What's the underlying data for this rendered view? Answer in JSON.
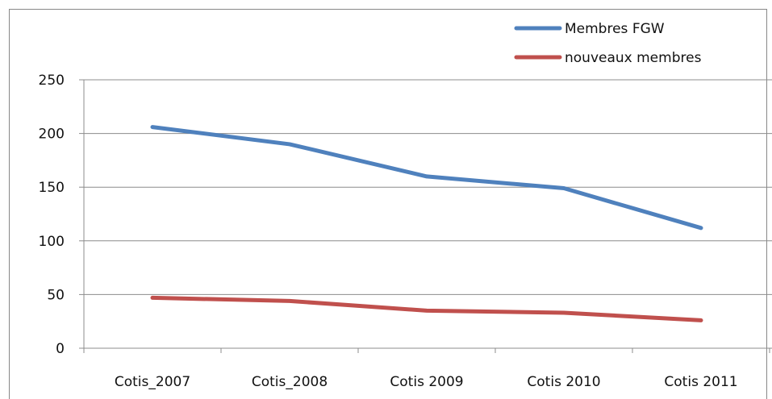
{
  "chart_data": {
    "type": "line",
    "title": "",
    "xlabel": "",
    "ylabel": "",
    "categories": [
      "Cotis_2007",
      "Cotis_2008",
      "Cotis 2009",
      "Cotis 2010",
      "Cotis 2011"
    ],
    "ylim": [
      0,
      250
    ],
    "yticks": [
      0,
      50,
      100,
      150,
      200,
      250
    ],
    "grid": true,
    "legend_position": "top-right",
    "series": [
      {
        "name": "Membres FGW",
        "color": "#4f81bd",
        "values": [
          206,
          190,
          160,
          149,
          112
        ]
      },
      {
        "name": "nouveaux membres",
        "color": "#c0504d",
        "values": [
          47,
          44,
          35,
          33,
          26
        ]
      }
    ]
  }
}
